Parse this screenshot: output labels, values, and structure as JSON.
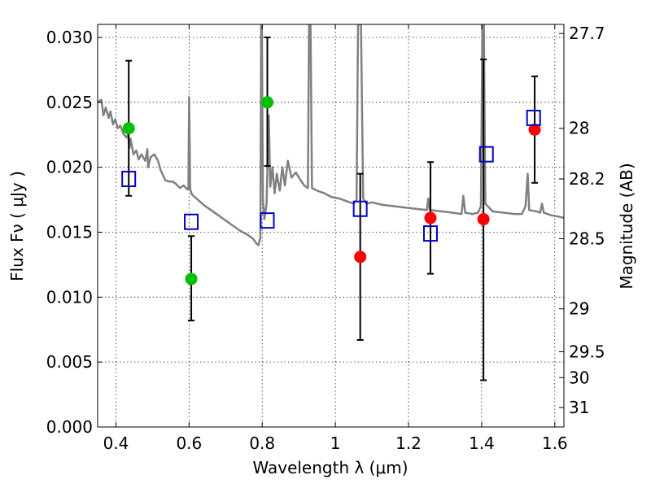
{
  "chart_data": {
    "type": "scatter",
    "xlabel": "Wavelength  λ (μm)",
    "ylabel": "Flux  Fν  ( μJy )",
    "ylabel_right": "Magnitude (AB)",
    "xlim": [
      0.35,
      1.625
    ],
    "ylim": [
      0.0,
      0.031
    ],
    "grid": true,
    "x_ticks": [
      0.4,
      0.6,
      0.8,
      1.0,
      1.2,
      1.4,
      1.6
    ],
    "x_tick_labels": [
      "0.4",
      "0.6",
      "0.8",
      "1",
      "1.2",
      "1.4",
      "1.6"
    ],
    "y_ticks": [
      0.0,
      0.005,
      0.01,
      0.015,
      0.02,
      0.025,
      0.03
    ],
    "y_tick_labels": [
      "0.000",
      "0.005",
      "0.010",
      "0.015",
      "0.020",
      "0.025",
      "0.030"
    ],
    "right_ticks": [
      {
        "label": "27.7",
        "flux": 0.0303
      },
      {
        "label": "28",
        "flux": 0.023
      },
      {
        "label": "28.2",
        "flux": 0.0191
      },
      {
        "label": "28.5",
        "flux": 0.0145
      },
      {
        "label": "29",
        "flux": 0.0091
      },
      {
        "label": "29.5",
        "flux": 0.0058
      },
      {
        "label": "30",
        "flux": 0.0038
      },
      {
        "label": "31",
        "flux": 0.0015
      }
    ],
    "colors": {
      "green": "#00c000",
      "red": "#ff0000",
      "blue": "#0000cc",
      "spectrum": "#808080",
      "errorbar": "#000000"
    },
    "series": [
      {
        "marker": "circle",
        "color": "#00c000",
        "points": [
          {
            "x": 0.435,
            "y": 0.023,
            "yerr_low": 0.0178,
            "yerr_high": 0.0282
          },
          {
            "x": 0.606,
            "y": 0.0114,
            "yerr_low": 0.0082,
            "yerr_high": 0.0147
          },
          {
            "x": 0.814,
            "y": 0.025,
            "yerr_low": 0.0201,
            "yerr_high": 0.03
          }
        ]
      },
      {
        "marker": "circle",
        "color": "#ff0000",
        "points": [
          {
            "x": 1.068,
            "y": 0.0131,
            "yerr_low": 0.0067,
            "yerr_high": 0.0195
          },
          {
            "x": 1.26,
            "y": 0.0161,
            "yerr_low": 0.0118,
            "yerr_high": 0.0204
          },
          {
            "x": 1.405,
            "y": 0.016,
            "yerr_low": 0.0036,
            "yerr_high": 0.0283
          },
          {
            "x": 1.545,
            "y": 0.0229,
            "yerr_low": 0.0188,
            "yerr_high": 0.027
          }
        ]
      },
      {
        "marker": "open-square",
        "color": "#0000cc",
        "points": [
          {
            "x": 0.435,
            "y": 0.0191
          },
          {
            "x": 0.606,
            "y": 0.0158
          },
          {
            "x": 0.814,
            "y": 0.0159
          },
          {
            "x": 1.068,
            "y": 0.0168
          },
          {
            "x": 1.26,
            "y": 0.0149
          },
          {
            "x": 1.413,
            "y": 0.021
          },
          {
            "x": 1.542,
            "y": 0.0238
          }
        ]
      }
    ],
    "spectrum": {
      "color": "#808080",
      "points": [
        [
          0.35,
          0.025
        ],
        [
          0.36,
          0.0252
        ],
        [
          0.366,
          0.024
        ],
        [
          0.372,
          0.0246
        ],
        [
          0.38,
          0.0238
        ],
        [
          0.385,
          0.0243
        ],
        [
          0.392,
          0.0233
        ],
        [
          0.398,
          0.0237
        ],
        [
          0.405,
          0.023
        ],
        [
          0.412,
          0.0232
        ],
        [
          0.42,
          0.0226
        ],
        [
          0.428,
          0.0223
        ],
        [
          0.433,
          0.0225
        ],
        [
          0.437,
          0.0215
        ],
        [
          0.44,
          0.0222
        ],
        [
          0.448,
          0.021
        ],
        [
          0.456,
          0.0213
        ],
        [
          0.462,
          0.0206
        ],
        [
          0.47,
          0.021
        ],
        [
          0.48,
          0.0205
        ],
        [
          0.486,
          0.0214
        ],
        [
          0.488,
          0.02
        ],
        [
          0.495,
          0.0208
        ],
        [
          0.505,
          0.021
        ],
        [
          0.515,
          0.0205
        ],
        [
          0.522,
          0.0198
        ],
        [
          0.535,
          0.019
        ],
        [
          0.545,
          0.0189
        ],
        [
          0.555,
          0.0189
        ],
        [
          0.565,
          0.0187
        ],
        [
          0.575,
          0.0184
        ],
        [
          0.585,
          0.0186
        ],
        [
          0.595,
          0.0183
        ],
        [
          0.598,
          0.0183
        ],
        [
          0.6,
          0.0254
        ],
        [
          0.603,
          0.0183
        ],
        [
          0.608,
          0.0179
        ],
        [
          0.62,
          0.0176
        ],
        [
          0.64,
          0.0171
        ],
        [
          0.66,
          0.0167
        ],
        [
          0.68,
          0.0163
        ],
        [
          0.7,
          0.0159
        ],
        [
          0.72,
          0.0155
        ],
        [
          0.74,
          0.0151
        ],
        [
          0.76,
          0.0148
        ],
        [
          0.775,
          0.0145
        ],
        [
          0.785,
          0.0141
        ],
        [
          0.79,
          0.014
        ],
        [
          0.795,
          0.0146
        ],
        [
          0.797,
          0.031
        ],
        [
          0.799,
          0.031
        ],
        [
          0.802,
          0.0175
        ],
        [
          0.806,
          0.016
        ],
        [
          0.812,
          0.0172
        ],
        [
          0.818,
          0.024
        ],
        [
          0.822,
          0.0185
        ],
        [
          0.828,
          0.02
        ],
        [
          0.834,
          0.018
        ],
        [
          0.84,
          0.0195
        ],
        [
          0.848,
          0.0182
        ],
        [
          0.855,
          0.02
        ],
        [
          0.862,
          0.0186
        ],
        [
          0.87,
          0.0205
        ],
        [
          0.88,
          0.0192
        ],
        [
          0.892,
          0.0196
        ],
        [
          0.905,
          0.019
        ],
        [
          0.915,
          0.0186
        ],
        [
          0.925,
          0.0184
        ],
        [
          0.928,
          0.031
        ],
        [
          0.932,
          0.031
        ],
        [
          0.936,
          0.0184
        ],
        [
          0.95,
          0.0182
        ],
        [
          0.97,
          0.018
        ],
        [
          0.99,
          0.0177
        ],
        [
          1.01,
          0.0176
        ],
        [
          1.03,
          0.0174
        ],
        [
          1.05,
          0.0172
        ],
        [
          1.058,
          0.0175
        ],
        [
          1.062,
          0.031
        ],
        [
          1.07,
          0.031
        ],
        [
          1.076,
          0.0176
        ],
        [
          1.085,
          0.0172
        ],
        [
          1.1,
          0.0173
        ],
        [
          1.13,
          0.0171
        ],
        [
          1.16,
          0.017
        ],
        [
          1.19,
          0.0169
        ],
        [
          1.22,
          0.0168
        ],
        [
          1.25,
          0.0167
        ],
        [
          1.254,
          0.0176
        ],
        [
          1.258,
          0.0167
        ],
        [
          1.29,
          0.0166
        ],
        [
          1.32,
          0.0165
        ],
        [
          1.345,
          0.0164
        ],
        [
          1.35,
          0.0178
        ],
        [
          1.355,
          0.0165
        ],
        [
          1.375,
          0.0164
        ],
        [
          1.39,
          0.0165
        ],
        [
          1.398,
          0.017
        ],
        [
          1.402,
          0.031
        ],
        [
          1.406,
          0.031
        ],
        [
          1.41,
          0.0172
        ],
        [
          1.43,
          0.0166
        ],
        [
          1.46,
          0.0165
        ],
        [
          1.49,
          0.0164
        ],
        [
          1.51,
          0.0164
        ],
        [
          1.52,
          0.017
        ],
        [
          1.526,
          0.0195
        ],
        [
          1.53,
          0.0167
        ],
        [
          1.55,
          0.0166
        ],
        [
          1.56,
          0.0165
        ],
        [
          1.565,
          0.0172
        ],
        [
          1.57,
          0.0165
        ],
        [
          1.59,
          0.0163
        ],
        [
          1.61,
          0.0162
        ],
        [
          1.625,
          0.0161
        ]
      ]
    }
  }
}
